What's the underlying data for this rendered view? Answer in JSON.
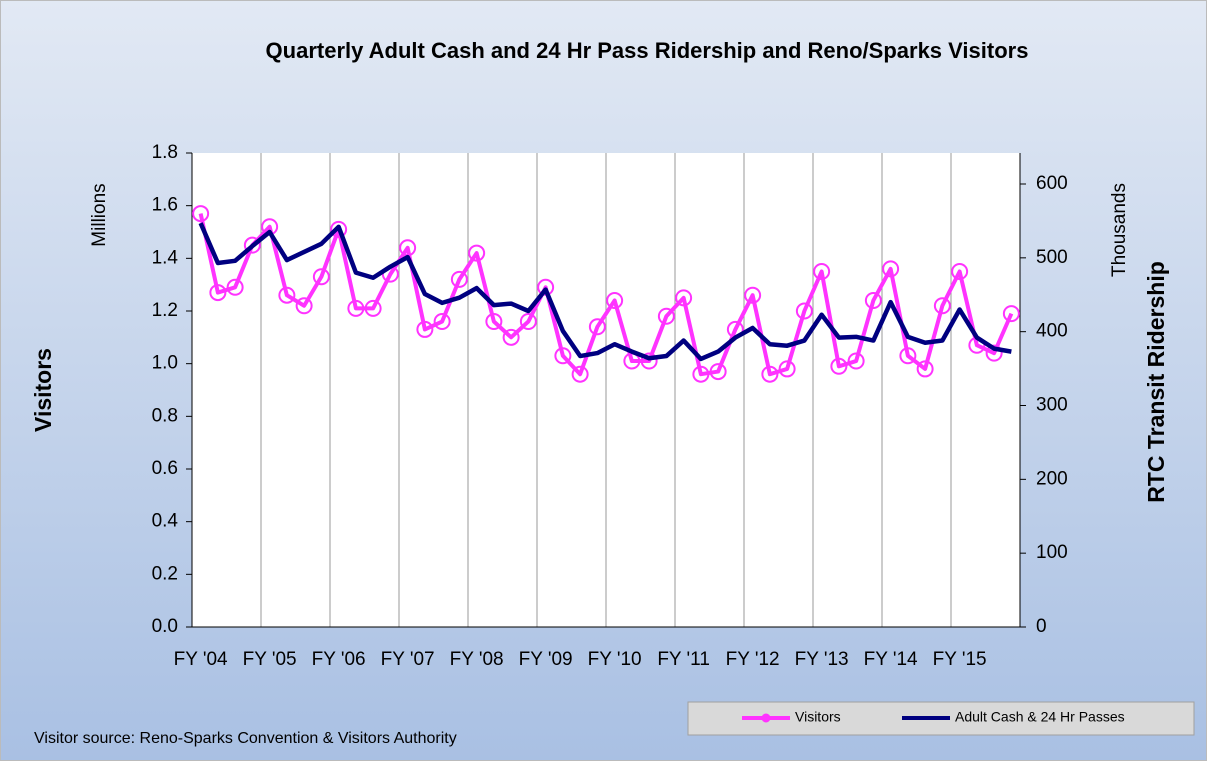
{
  "chart_data": {
    "type": "line",
    "title": "Quarterly Adult Cash and 24 Hr Pass Ridership and Reno/Sparks Visitors",
    "y_label": "Visitors",
    "y_unit": "Millions",
    "y2_label": "RTC Transit Ridership",
    "y2_unit": "Thousands",
    "source": "Visitor source: Reno-Sparks Convention & Visitors Authority",
    "categories": [
      "FY '04",
      null,
      null,
      null,
      "FY '05",
      null,
      null,
      null,
      "FY '06",
      null,
      null,
      null,
      "FY '07",
      null,
      null,
      null,
      "FY '08",
      null,
      null,
      null,
      "FY '09",
      null,
      null,
      null,
      "FY '10",
      null,
      null,
      null,
      "FY '11",
      null,
      null,
      null,
      "FY '12",
      null,
      null,
      null,
      "FY '13",
      null,
      null,
      null,
      "FY '14",
      null,
      null,
      null,
      "FY '15",
      null,
      null,
      null
    ],
    "series": [
      {
        "name": "Visitors",
        "color": "#ff33ff",
        "marker": "circle",
        "values": [
          1.57,
          1.27,
          1.29,
          1.45,
          1.52,
          1.26,
          1.22,
          1.33,
          1.51,
          1.21,
          1.21,
          1.34,
          1.44,
          1.13,
          1.16,
          1.32,
          1.42,
          1.16,
          1.1,
          1.16,
          1.29,
          1.03,
          0.96,
          1.14,
          1.24,
          1.01,
          1.01,
          1.18,
          1.25,
          0.96,
          0.97,
          1.13,
          1.26,
          0.96,
          0.98,
          1.2,
          1.35,
          0.99,
          1.01,
          1.24,
          1.36,
          1.03,
          0.98,
          1.22,
          1.35,
          1.07,
          1.04,
          1.19
        ]
      },
      {
        "name": "Adult Cash & 24 Hr Passes",
        "color": "#000080",
        "axis": "y2",
        "values": [
          547,
          493,
          496,
          516,
          535,
          497,
          508,
          519,
          542,
          480,
          473,
          488,
          501,
          451,
          439,
          446,
          459,
          436,
          438,
          428,
          457,
          401,
          367,
          371,
          383,
          373,
          364,
          367,
          388,
          363,
          373,
          392,
          405,
          383,
          381,
          388,
          423,
          392,
          393,
          388,
          440,
          393,
          385,
          388,
          430,
          392,
          377,
          373
        ]
      }
    ],
    "ylim": [
      0,
      1.8
    ],
    "yticks": [
      {
        "value": 0,
        "label": "0.0"
      },
      0.2,
      0.4,
      0.6,
      0.8,
      {
        "value": 1,
        "label": "1.0"
      },
      1.2,
      1.4,
      1.6,
      1.8
    ],
    "y2lim": [
      0,
      642
    ],
    "y2ticks": [
      0,
      100,
      200,
      300,
      400,
      500,
      600
    ],
    "grid": "vertical",
    "legend": "bottom-right"
  }
}
